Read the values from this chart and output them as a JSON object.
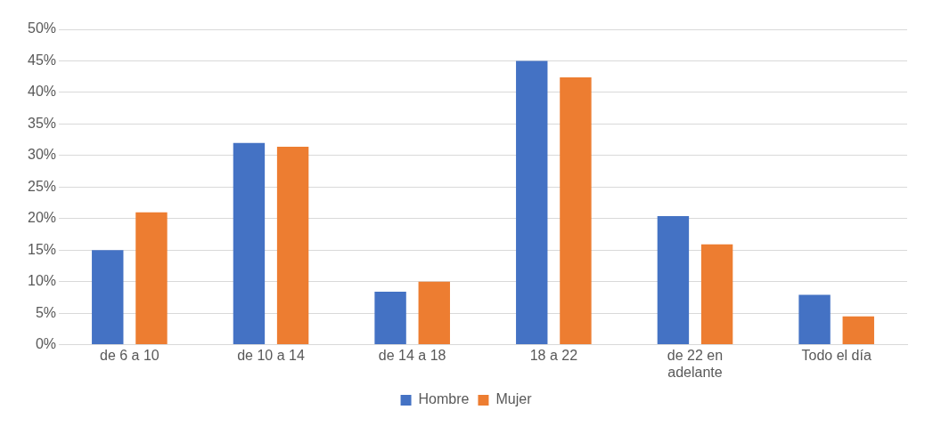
{
  "chart_data": {
    "type": "bar",
    "categories": [
      "de 6 a 10",
      "de 10 a 14",
      "de 14 a 18",
      "18 a 22",
      "de 22 en adelante",
      "Todo el día"
    ],
    "series": [
      {
        "name": "Hombre",
        "color": "#4472c4",
        "values": [
          15.0,
          32.0,
          8.4,
          45.0,
          20.4,
          7.9
        ]
      },
      {
        "name": "Mujer",
        "color": "#ed7d31",
        "values": [
          21.0,
          31.4,
          10.0,
          42.4,
          15.9,
          4.5
        ]
      }
    ],
    "ylim": [
      0,
      50
    ],
    "yticks": [
      {
        "value": 0,
        "label": "0%"
      },
      {
        "value": 5,
        "label": "5%"
      },
      {
        "value": 10,
        "label": "10%"
      },
      {
        "value": 15,
        "label": "15%"
      },
      {
        "value": 20,
        "label": "20%"
      },
      {
        "value": 25,
        "label": "25%"
      },
      {
        "value": 30,
        "label": "30%"
      },
      {
        "value": 35,
        "label": "35%"
      },
      {
        "value": 40,
        "label": "40%"
      },
      {
        "value": 45,
        "label": "45%"
      },
      {
        "value": 50,
        "label": "50%"
      }
    ],
    "grid": "y",
    "legend": "bottom"
  }
}
